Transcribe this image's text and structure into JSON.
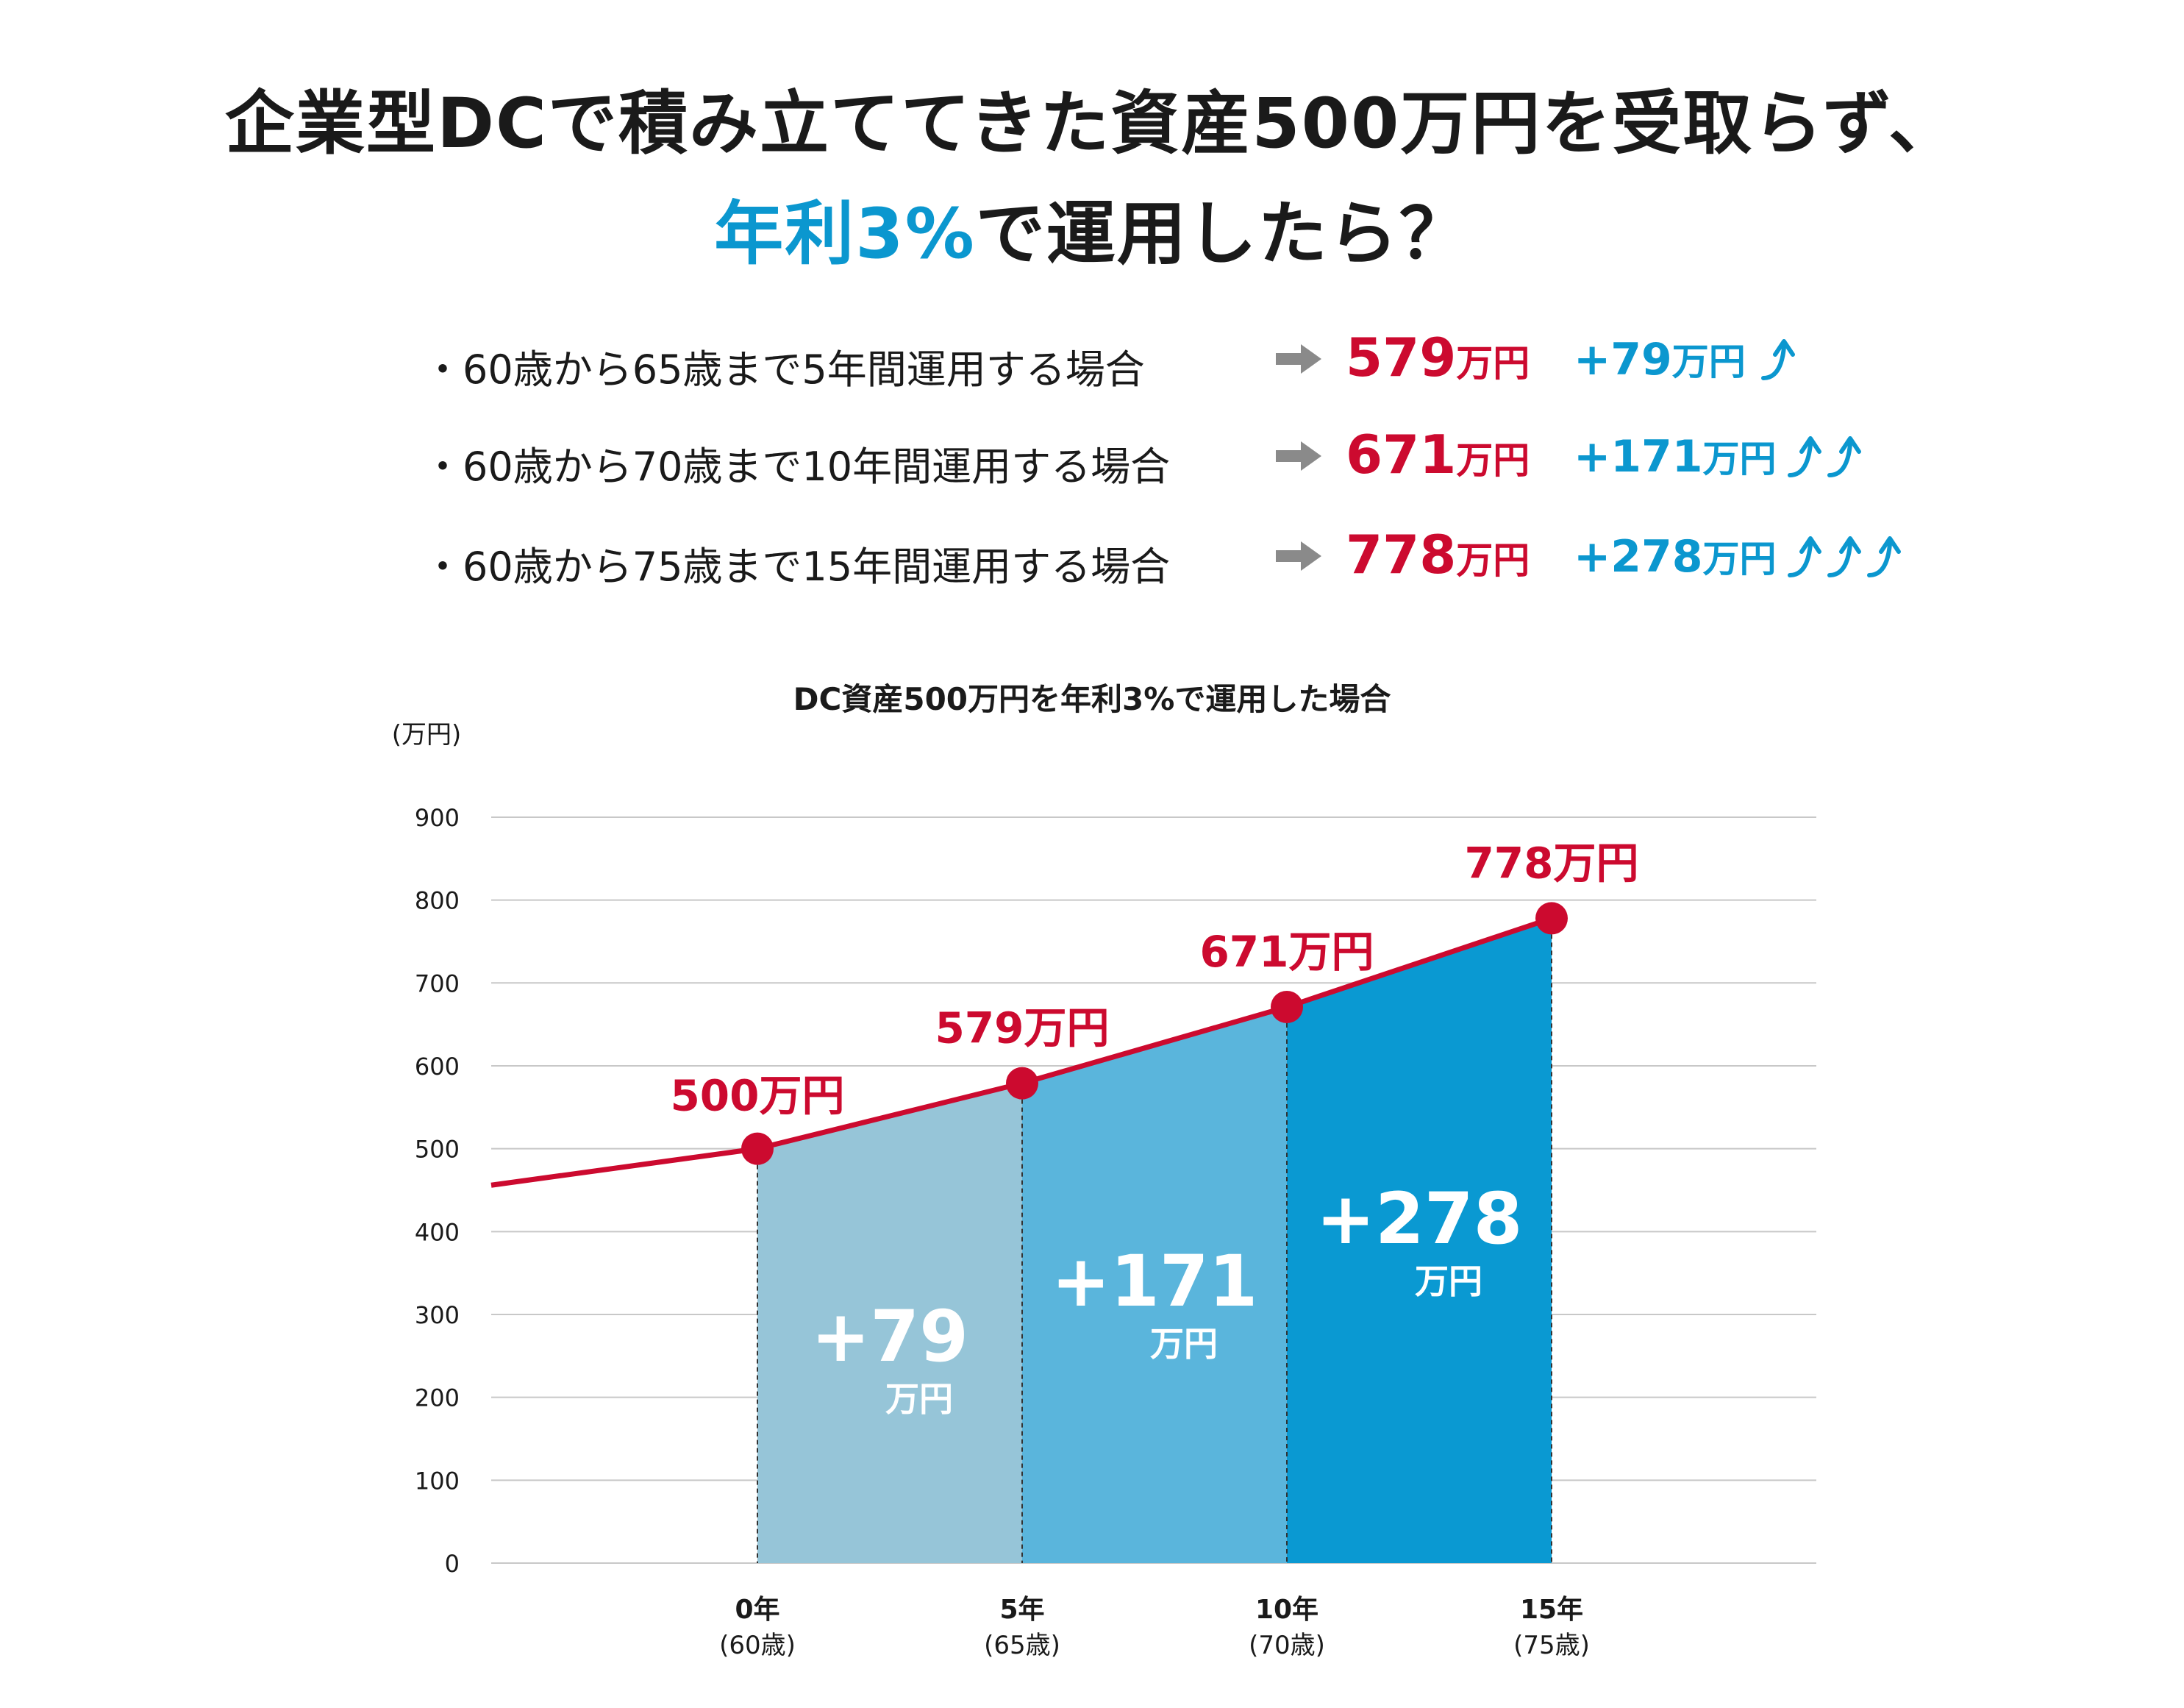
{
  "title": {
    "line1": "企業型DCで積み立ててきた資産500万円を受取らず、",
    "line2_accent": "年利3%",
    "line2_rest": "で運用したら？"
  },
  "summary": [
    {
      "text": "・60歳から65歳まで5年間運用する場合",
      "total": "579",
      "total_unit": "万円",
      "gain": "+79",
      "gain_unit": "万円",
      "arrows": 1
    },
    {
      "text": "・60歳から70歳まで10年間運用する場合",
      "total": "671",
      "total_unit": "万円",
      "gain": "+171",
      "gain_unit": "万円",
      "arrows": 2
    },
    {
      "text": "・60歳から75歳まで15年間運用する場合",
      "total": "778",
      "total_unit": "万円",
      "gain": "+278",
      "gain_unit": "万円",
      "arrows": 3
    }
  ],
  "colors": {
    "red": "#cc0a2f",
    "blue": "#0b97cf",
    "fill1": "#96c5d8",
    "fill2": "#5ab5dc",
    "fill3": "#0a99d2",
    "grid": "#c8c8c8"
  },
  "icons": {
    "arrow": "right-arrow-icon",
    "up": "up-arrow-icon"
  },
  "chart_data": {
    "type": "area",
    "title": "DC資産500万円を年利3%で運用した場合",
    "ylabel": "(万円)",
    "ylim": [
      0,
      900
    ],
    "yticks": [
      0,
      100,
      200,
      300,
      400,
      500,
      600,
      700,
      800,
      900
    ],
    "x": [
      0,
      5,
      10,
      15
    ],
    "xlabels": [
      "0年",
      "5年",
      "10年",
      "15年"
    ],
    "xsublabels": [
      "(60歳)",
      "(65歳)",
      "(70歳)",
      "(75歳)"
    ],
    "values": [
      500,
      579,
      671,
      778
    ],
    "lead_in": {
      "x": -5,
      "y": 456
    },
    "point_labels": [
      "500万円",
      "579万円",
      "671万円",
      "778万円"
    ],
    "gains": [
      {
        "value": "+79",
        "unit": "万円"
      },
      {
        "value": "+171",
        "unit": "万円"
      },
      {
        "value": "+278",
        "unit": "万円"
      }
    ],
    "grid": true,
    "legend": "none"
  }
}
